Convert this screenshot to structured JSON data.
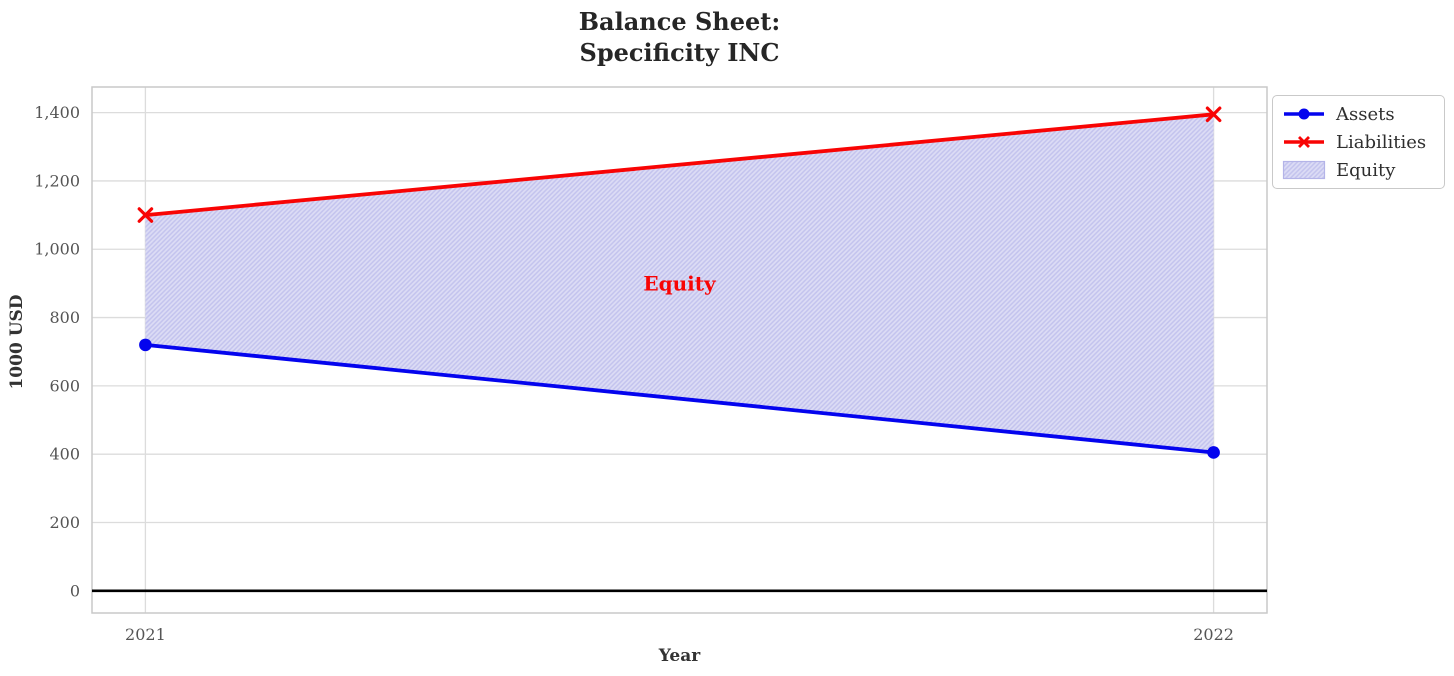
{
  "chart_data": {
    "type": "line",
    "title": "Balance Sheet:\nSpecificity INC",
    "xlabel": "Year",
    "ylabel": "1000 USD",
    "x": [
      2021,
      2022
    ],
    "x_tick_labels": [
      "2021",
      "2022"
    ],
    "series": [
      {
        "name": "Assets",
        "color": "#0404ee",
        "marker": "circle",
        "values": [
          720,
          405
        ]
      },
      {
        "name": "Liabilities",
        "color": "#f80404",
        "marker": "x",
        "values": [
          1100,
          1395
        ]
      }
    ],
    "area": {
      "label": "Equity",
      "between": [
        "Assets",
        "Liabilities"
      ],
      "fill": "#dcdcf5",
      "hatch": "//",
      "hatch_color": "#c3c3ee",
      "annotation": {
        "text": "Equity",
        "x": 2021.5,
        "y": 900,
        "color": "#f80404"
      }
    },
    "yticks": [
      0,
      200,
      400,
      600,
      800,
      1000,
      1200,
      1400
    ],
    "ytick_labels": [
      "0",
      "200",
      "400",
      "600",
      "800",
      "1,000",
      "1,200",
      "1,400"
    ],
    "ylim": [
      -65,
      1475
    ],
    "grid": true,
    "zero_line": {
      "y": 0,
      "color": "#000000"
    },
    "legend_position": "outside-upper-right",
    "axis_colors": {
      "grid": "#dcdcdc",
      "spine": "#c9c9c9",
      "tick_text": "#555555"
    }
  }
}
